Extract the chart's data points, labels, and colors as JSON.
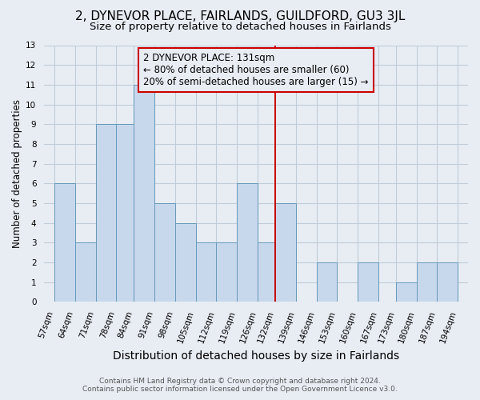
{
  "title1": "2, DYNEVOR PLACE, FAIRLANDS, GUILDFORD, GU3 3JL",
  "title2": "Size of property relative to detached houses in Fairlands",
  "xlabel": "Distribution of detached houses by size in Fairlands",
  "ylabel": "Number of detached properties",
  "bin_labels": [
    "57sqm",
    "64sqm",
    "71sqm",
    "78sqm",
    "84sqm",
    "91sqm",
    "98sqm",
    "105sqm",
    "112sqm",
    "119sqm",
    "126sqm",
    "132sqm",
    "139sqm",
    "146sqm",
    "153sqm",
    "160sqm",
    "167sqm",
    "173sqm",
    "180sqm",
    "187sqm",
    "194sqm"
  ],
  "bin_edges": [
    57,
    64,
    71,
    78,
    84,
    91,
    98,
    105,
    112,
    119,
    126,
    132,
    139,
    146,
    153,
    160,
    167,
    173,
    180,
    187,
    194
  ],
  "bar_heights": [
    6,
    3,
    9,
    9,
    11,
    5,
    4,
    3,
    3,
    6,
    3,
    5,
    0,
    2,
    0,
    2,
    0,
    1,
    2,
    2
  ],
  "bar_color": "#c8d8ec",
  "bar_edgecolor": "#6699bb",
  "property_line_x": 132,
  "property_line_color": "#cc0000",
  "annotation_text": "2 DYNEVOR PLACE: 131sqm\n← 80% of detached houses are smaller (60)\n20% of semi-detached houses are larger (15) →",
  "annotation_box_edgecolor": "#cc0000",
  "ylim": [
    0,
    13
  ],
  "yticks": [
    0,
    1,
    2,
    3,
    4,
    5,
    6,
    7,
    8,
    9,
    10,
    11,
    12,
    13
  ],
  "grid_color": "#c0ccd8",
  "background_color": "#e8edf4",
  "footer_line1": "Contains HM Land Registry data © Crown copyright and database right 2024.",
  "footer_line2": "Contains public sector information licensed under the Open Government Licence v3.0.",
  "title1_fontsize": 11,
  "title2_fontsize": 9.5,
  "xlabel_fontsize": 10,
  "ylabel_fontsize": 8.5,
  "annotation_fontsize": 8.5,
  "footer_fontsize": 6.5,
  "tick_fontsize": 7.5
}
